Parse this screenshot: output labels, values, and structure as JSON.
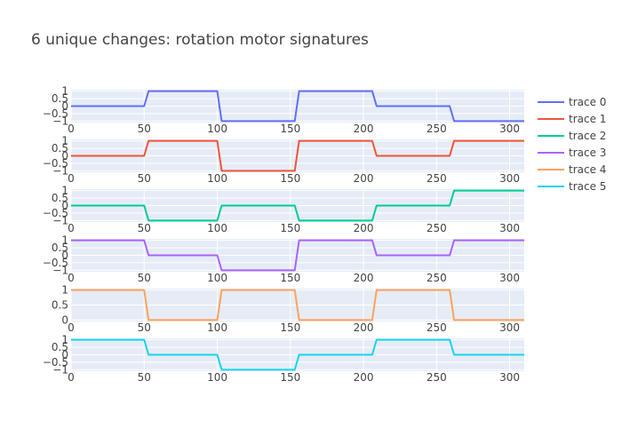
{
  "chart_data": {
    "type": "line",
    "title": "6 unique changes: rotation motor signatures",
    "x": [
      0,
      50,
      53,
      100,
      103,
      153,
      156,
      206,
      209,
      259,
      262,
      310
    ],
    "xlim": [
      0,
      310
    ],
    "x_ticks": [
      0,
      50,
      100,
      150,
      200,
      250,
      300
    ],
    "x_tick_labels": [
      "0",
      "50",
      "100",
      "150",
      "200",
      "250",
      "300"
    ],
    "grid": true,
    "legend_position": "right",
    "series": [
      {
        "name": "trace 0",
        "color": "#636efa",
        "ylim": [
          -1.1,
          1.1
        ],
        "y_ticks": [
          1,
          0.5,
          0,
          -0.5,
          -1
        ],
        "y_tick_labels": [
          "1",
          "0.5",
          "0",
          "−0.5",
          "−1"
        ],
        "values": [
          0,
          0,
          1,
          1,
          -1,
          -1,
          1,
          1,
          0,
          0,
          -1,
          -1
        ]
      },
      {
        "name": "trace 1",
        "color": "#ef553b",
        "ylim": [
          -1.1,
          1.1
        ],
        "y_ticks": [
          1,
          0.5,
          0,
          -0.5,
          -1
        ],
        "y_tick_labels": [
          "1",
          "0.5",
          "0",
          "−0.5",
          "−1"
        ],
        "values": [
          0,
          0,
          1,
          1,
          -1,
          -1,
          1,
          1,
          0,
          0,
          1,
          1
        ]
      },
      {
        "name": "trace 2",
        "color": "#00cc96",
        "ylim": [
          -1.1,
          1.1
        ],
        "y_ticks": [
          1,
          0.5,
          0,
          -0.5,
          -1
        ],
        "y_tick_labels": [
          "1",
          "0.5",
          "0",
          "−0.5",
          "−1"
        ],
        "values": [
          0,
          0,
          -1,
          -1,
          0,
          0,
          -1,
          -1,
          0,
          0,
          1,
          1
        ]
      },
      {
        "name": "trace 3",
        "color": "#ab63fa",
        "ylim": [
          -1.1,
          1.1
        ],
        "y_ticks": [
          1,
          0.5,
          0,
          -0.5,
          -1
        ],
        "y_tick_labels": [
          "1",
          "0.5",
          "0",
          "−0.5",
          "−1"
        ],
        "values": [
          1,
          1,
          0,
          0,
          -1,
          -1,
          1,
          1,
          0,
          0,
          1,
          1
        ]
      },
      {
        "name": "trace 4",
        "color": "#ffa15a",
        "ylim": [
          -0.05,
          1.05
        ],
        "y_ticks": [
          1,
          0.5,
          0
        ],
        "y_tick_labels": [
          "1",
          "0.5",
          "0"
        ],
        "values": [
          1,
          1,
          0,
          0,
          1,
          1,
          0,
          0,
          1,
          1,
          0,
          0
        ]
      },
      {
        "name": "trace 5",
        "color": "#19d3f3",
        "ylim": [
          -1.1,
          1.1
        ],
        "y_ticks": [
          1,
          0.5,
          0,
          -0.5,
          -1
        ],
        "y_tick_labels": [
          "1",
          "0.5",
          "0",
          "−0.5",
          "−1"
        ],
        "values": [
          1,
          1,
          0,
          0,
          -1,
          -1,
          0,
          0,
          1,
          1,
          0,
          0
        ]
      }
    ]
  }
}
